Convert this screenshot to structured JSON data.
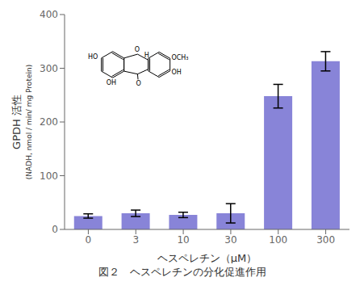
{
  "chart_data": {
    "type": "bar",
    "categories": [
      "0",
      "3",
      "10",
      "30",
      "100",
      "300"
    ],
    "values": [
      25,
      30,
      27,
      30,
      248,
      313
    ],
    "errors": [
      4,
      6,
      5,
      18,
      22,
      18
    ],
    "color": "#8884d8",
    "ylim": [
      0,
      400
    ],
    "yticks": [
      0,
      100,
      200,
      300,
      400
    ],
    "grid": false,
    "xlabel": "ヘスペレチン（μM）",
    "ylabel": "GPDH 活性",
    "ylabel_sub": "(NADH, nmol / min/ mg Protein)",
    "caption": "図２　ヘスペレチンの分化促進作用",
    "annotations": [
      "O",
      "O",
      "H",
      "OCH₃",
      "OH",
      "HO",
      "OH"
    ]
  }
}
